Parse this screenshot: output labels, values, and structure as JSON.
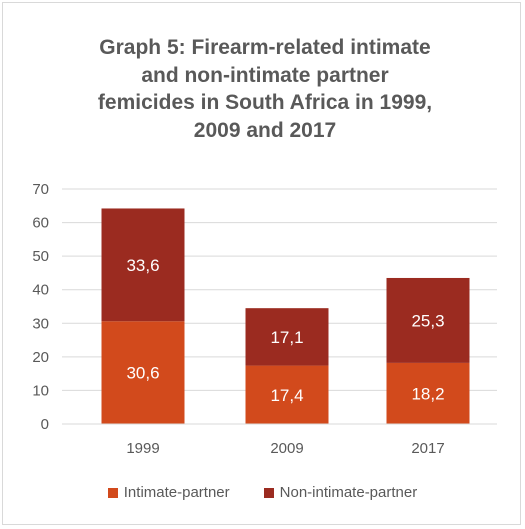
{
  "chart_data": {
    "type": "bar",
    "stacked": true,
    "title": "Graph 5: Firearm-related intimate\nand non-intimate partner\nfemicides in South Africa in 1999,\n2009 and 2017",
    "categories": [
      "1999",
      "2009",
      "2017"
    ],
    "series": [
      {
        "name": "Intimate-partner",
        "values": [
          30.6,
          17.4,
          18.2
        ],
        "labels": [
          "30,6",
          "17,4",
          "18,2"
        ],
        "color": "#d24a1c"
      },
      {
        "name": "Non-intimate-partner",
        "values": [
          33.6,
          17.1,
          25.3
        ],
        "labels": [
          "33,6",
          "17,1",
          "25,3"
        ],
        "color": "#9b2b20"
      }
    ],
    "ylim": [
      0,
      70
    ],
    "yticks": [
      "0",
      "10",
      "20",
      "30",
      "40",
      "50",
      "60",
      "70"
    ],
    "grid": true,
    "legend_position": "bottom",
    "data_label_color": "#ffffff",
    "axis_text_color": "#595959",
    "gridline_color": "#d9d9d9"
  }
}
